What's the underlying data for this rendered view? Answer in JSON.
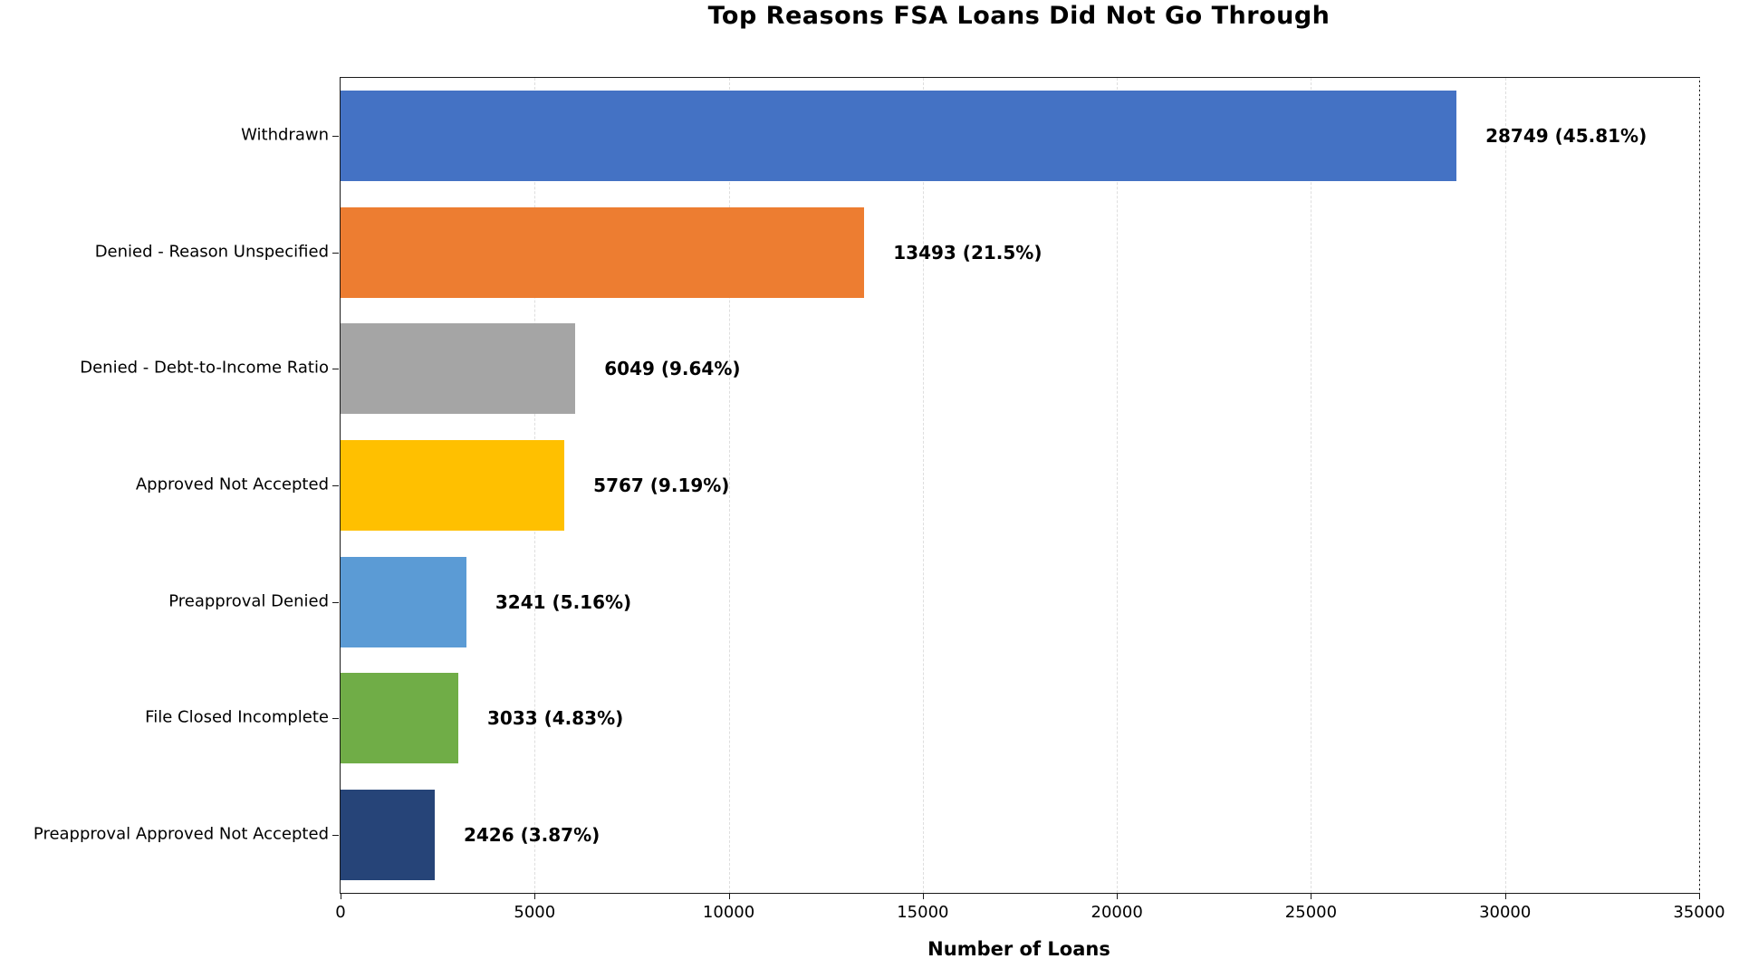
{
  "title": "Top Reasons FSA Loans Did Not Go Through",
  "chart_data": {
    "type": "bar",
    "orientation": "horizontal",
    "title": "Top Reasons FSA Loans Did Not Go Through",
    "xlabel": "Number of Loans",
    "ylabel": "",
    "xlim": [
      0,
      35000
    ],
    "xticks": [
      0,
      5000,
      10000,
      15000,
      20000,
      25000,
      30000,
      35000
    ],
    "xtick_labels": [
      "0",
      "5000",
      "10000",
      "15000",
      "20000",
      "25000",
      "30000",
      "35000"
    ],
    "grid": "vertical-dashed",
    "legend": "none",
    "categories": [
      "Withdrawn",
      "Denied - Reason Unspecified",
      "Denied - Debt-to-Income Ratio",
      "Approved Not Accepted",
      "Preapproval Denied",
      "File Closed Incomplete",
      "Preapproval Approved Not Accepted"
    ],
    "values": [
      28749,
      13493,
      6049,
      5767,
      3241,
      3033,
      2426
    ],
    "percentages": [
      45.81,
      21.5,
      9.64,
      9.19,
      5.16,
      4.83,
      3.87
    ],
    "value_labels": [
      "28749 (45.81%)",
      "13493 (21.5%)",
      "6049 (9.64%)",
      "5767 (9.19%)",
      "3241 (5.16%)",
      "3033 (4.83%)",
      "2426 (3.87%)"
    ],
    "colors": [
      "#4472C4",
      "#ED7D31",
      "#A5A5A5",
      "#FFC000",
      "#5B9BD5",
      "#70AD47",
      "#264478"
    ]
  }
}
